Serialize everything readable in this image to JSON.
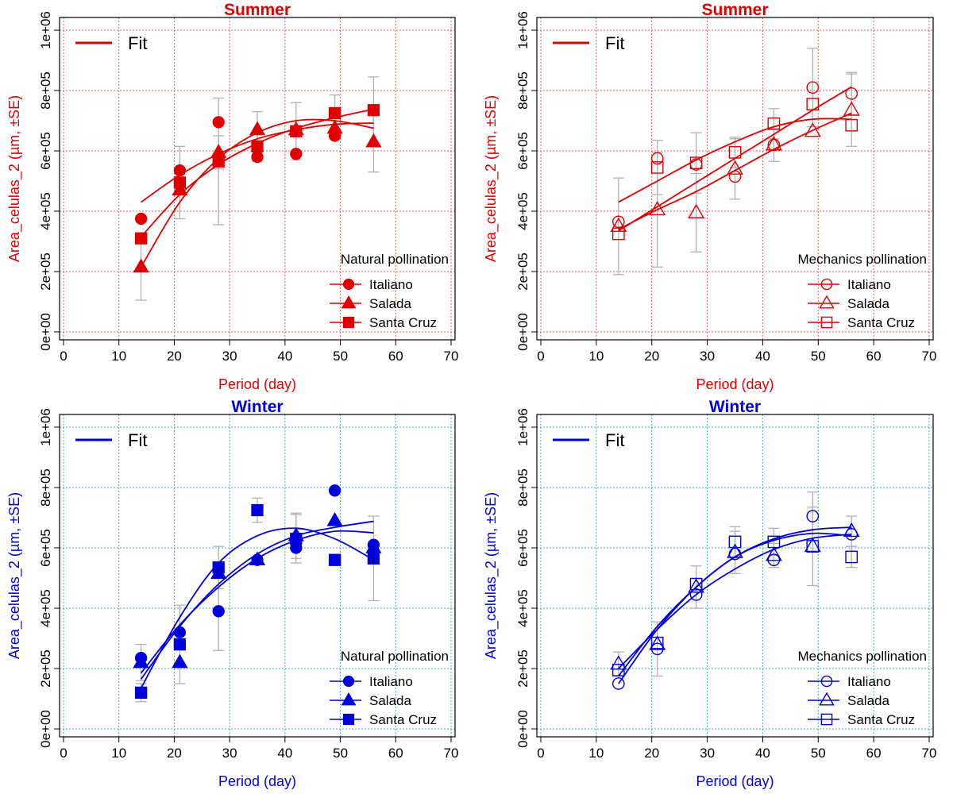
{
  "colors": {
    "summer": "#e00000",
    "winter": "#0000dd",
    "summer_grid": "#e06060",
    "winter_grid": "#40b0b0",
    "error_bar": "#b0b0b0"
  },
  "chart_data": [
    {
      "type": "scatter",
      "title": "Summer",
      "xlabel": "Period (day)",
      "ylabel": "Area_celulas_2 (µm, ±SE)",
      "xlim": [
        0,
        70
      ],
      "ylim": [
        0,
        1000000
      ],
      "xticks": [
        "0",
        "10",
        "20",
        "30",
        "40",
        "50",
        "60",
        "70"
      ],
      "yticks": [
        "0e+00",
        "2e+05",
        "4e+05",
        "6e+05",
        "8e+05",
        "1e+06"
      ],
      "grid": true,
      "fit_label": "Fit",
      "legend_title": "Natural pollination",
      "legend_position": "bottom-right",
      "color": "summer",
      "filled": true,
      "series": [
        {
          "name": "Italiano",
          "marker": "circle",
          "x": [
            14,
            21,
            28,
            35,
            42,
            49,
            56
          ],
          "y": [
            375000,
            535000,
            695000,
            580000,
            590000,
            650000,
            735000
          ],
          "se": [
            0,
            0,
            0,
            0,
            0,
            0,
            0
          ],
          "fit": {
            "x": [
              14,
              21,
              28,
              35,
              42,
              49,
              56
            ],
            "y": [
              430000,
              520000,
              590000,
              640000,
              670000,
              688000,
              692000
            ]
          }
        },
        {
          "name": "Salada",
          "marker": "triangle",
          "x": [
            14,
            21,
            28,
            35,
            42,
            49,
            56
          ],
          "y": [
            215000,
            470000,
            595000,
            670000,
            670000,
            675000,
            630000
          ],
          "se": [
            110000,
            0,
            55000,
            60000,
            0,
            0,
            100000
          ],
          "fit": {
            "x": [
              14,
              21,
              28,
              35,
              42,
              49,
              56
            ],
            "y": [
              215000,
              430000,
              575000,
              660000,
              700000,
              700000,
              675000
            ]
          }
        },
        {
          "name": "Santa Cruz",
          "marker": "square",
          "x": [
            14,
            21,
            28,
            35,
            42,
            49,
            56
          ],
          "y": [
            310000,
            495000,
            565000,
            615000,
            665000,
            725000,
            735000
          ],
          "se": [
            0,
            120000,
            210000,
            50000,
            95000,
            60000,
            110000
          ],
          "fit": {
            "x": [
              14,
              21,
              28,
              35,
              42,
              49,
              56
            ],
            "y": [
              315000,
              455000,
              555000,
              625000,
              675000,
              710000,
              738000
            ]
          }
        }
      ]
    },
    {
      "type": "scatter",
      "title": "Summer",
      "xlabel": "Period (day)",
      "ylabel": "Area_celulas_2 (µm, ±SE)",
      "xlim": [
        0,
        70
      ],
      "ylim": [
        0,
        1000000
      ],
      "xticks": [
        "0",
        "10",
        "20",
        "30",
        "40",
        "50",
        "60",
        "70"
      ],
      "yticks": [
        "0e+00",
        "2e+05",
        "4e+05",
        "6e+05",
        "8e+05",
        "1e+06"
      ],
      "grid": true,
      "fit_label": "Fit",
      "legend_title": "Mechanics pollination",
      "legend_position": "bottom-right",
      "color": "summer",
      "filled": false,
      "series": [
        {
          "name": "Italiano",
          "marker": "circle",
          "x": [
            14,
            21,
            28,
            35,
            42,
            49,
            56
          ],
          "y": [
            365000,
            575000,
            555000,
            515000,
            620000,
            810000,
            790000
          ],
          "se": [
            0,
            0,
            0,
            0,
            0,
            130000,
            70000
          ],
          "fit": {
            "x": [
              14,
              21,
              28,
              35,
              42,
              49,
              56
            ],
            "y": [
              335000,
              415000,
              495000,
              575000,
              655000,
              735000,
              812000
            ]
          }
        },
        {
          "name": "Salada",
          "marker": "triangle",
          "x": [
            14,
            21,
            28,
            35,
            42,
            49,
            56
          ],
          "y": [
            350000,
            405000,
            395000,
            540000,
            620000,
            665000,
            735000
          ],
          "se": [
            160000,
            190000,
            130000,
            100000,
            55000,
            0,
            120000
          ],
          "fit": {
            "x": [
              14,
              21,
              28,
              35,
              42,
              49,
              56
            ],
            "y": [
              340000,
              405000,
              465000,
              535000,
              605000,
              668000,
              725000
            ]
          }
        },
        {
          "name": "Santa Cruz",
          "marker": "square",
          "x": [
            14,
            21,
            28,
            35,
            42,
            49,
            56
          ],
          "y": [
            325000,
            545000,
            560000,
            595000,
            690000,
            755000,
            685000
          ],
          "se": [
            0,
            90000,
            100000,
            50000,
            50000,
            0,
            0
          ],
          "fit": {
            "x": [
              14,
              21,
              28,
              35,
              42,
              49,
              56
            ],
            "y": [
              430000,
              500000,
              570000,
              630000,
              680000,
              705000,
              705000
            ]
          }
        }
      ]
    },
    {
      "type": "scatter",
      "title": "Winter",
      "xlabel": "Period (day)",
      "ylabel": "Area_celulas_2 (µm, ±SE)",
      "xlim": [
        0,
        70
      ],
      "ylim": [
        0,
        1000000
      ],
      "xticks": [
        "0",
        "10",
        "20",
        "30",
        "40",
        "50",
        "60",
        "70"
      ],
      "yticks": [
        "0e+00",
        "2e+05",
        "4e+05",
        "6e+05",
        "8e+05",
        "1e+06"
      ],
      "grid": true,
      "fit_label": "Fit",
      "legend_title": "Natural pollination",
      "legend_position": "bottom-right",
      "color": "winter",
      "filled": true,
      "series": [
        {
          "name": "Italiano",
          "marker": "circle",
          "x": [
            14,
            21,
            28,
            35,
            42,
            49,
            56
          ],
          "y": [
            235000,
            320000,
            390000,
            560000,
            600000,
            790000,
            610000
          ],
          "se": [
            0,
            0,
            130000,
            0,
            0,
            0,
            0
          ],
          "fit": {
            "x": [
              14,
              21,
              28,
              35,
              42,
              49,
              56
            ],
            "y": [
              135000,
              370000,
              550000,
              640000,
              665000,
              630000,
              560000
            ]
          }
        },
        {
          "name": "Salada",
          "marker": "triangle",
          "x": [
            14,
            21,
            28,
            35,
            42,
            49,
            56
          ],
          "y": [
            220000,
            220000,
            515000,
            560000,
            640000,
            690000,
            600000
          ],
          "se": [
            60000,
            0,
            0,
            0,
            75000,
            0,
            0
          ],
          "fit": {
            "x": [
              14,
              21,
              28,
              35,
              42,
              49,
              56
            ],
            "y": [
              165000,
              340000,
              480000,
              580000,
              640000,
              668000,
              688000
            ]
          }
        },
        {
          "name": "Santa Cruz",
          "marker": "square",
          "x": [
            14,
            21,
            28,
            35,
            42,
            49,
            56
          ],
          "y": [
            120000,
            280000,
            535000,
            725000,
            630000,
            560000,
            565000
          ],
          "se": [
            30000,
            130000,
            70000,
            40000,
            80000,
            0,
            140000
          ],
          "fit": {
            "x": [
              14,
              21,
              28,
              35,
              42,
              49,
              56
            ],
            "y": [
              185000,
              345000,
              470000,
              565000,
              625000,
              655000,
              650000
            ]
          }
        }
      ]
    },
    {
      "type": "scatter",
      "title": "Winter",
      "xlabel": "Period (day)",
      "ylabel": "Area_celulas_2 (µm, ±SE)",
      "xlim": [
        0,
        70
      ],
      "ylim": [
        0,
        1000000
      ],
      "xticks": [
        "0",
        "10",
        "20",
        "30",
        "40",
        "50",
        "60",
        "70"
      ],
      "yticks": [
        "0e+00",
        "2e+05",
        "4e+05",
        "6e+05",
        "8e+05",
        "1e+06"
      ],
      "grid": true,
      "fit_label": "Fit",
      "legend_title": "Mechanics pollination",
      "legend_position": "bottom-right",
      "color": "winter",
      "filled": false,
      "series": [
        {
          "name": "Italiano",
          "marker": "circle",
          "x": [
            14,
            21,
            28,
            35,
            42,
            49,
            56
          ],
          "y": [
            150000,
            265000,
            445000,
            580000,
            560000,
            705000,
            645000
          ],
          "se": [
            0,
            90000,
            0,
            0,
            0,
            80000,
            0
          ],
          "fit": {
            "x": [
              14,
              21,
              28,
              35,
              42,
              49,
              56
            ],
            "y": [
              150000,
              330000,
              470000,
              570000,
              630000,
              660000,
              668000
            ]
          }
        },
        {
          "name": "Salada",
          "marker": "triangle",
          "x": [
            14,
            21,
            28,
            35,
            42,
            49,
            56
          ],
          "y": [
            215000,
            280000,
            470000,
            585000,
            575000,
            605000,
            655000
          ],
          "se": [
            40000,
            0,
            70000,
            70000,
            40000,
            130000,
            50000
          ],
          "fit": {
            "x": [
              14,
              21,
              28,
              35,
              42,
              49,
              56
            ],
            "y": [
              200000,
              330000,
              445000,
              530000,
              595000,
              632000,
              645000
            ]
          }
        },
        {
          "name": "Santa Cruz",
          "marker": "square",
          "x": [
            14,
            21,
            28,
            35,
            42,
            49,
            56
          ],
          "y": [
            195000,
            285000,
            480000,
            620000,
            620000,
            605000,
            570000
          ],
          "se": [
            0,
            0,
            0,
            50000,
            45000,
            0,
            35000
          ],
          "fit": {
            "x": [
              14,
              21,
              28,
              35,
              42,
              49,
              56
            ],
            "y": [
              175000,
              340000,
              470000,
              570000,
              625000,
              648000,
              640000
            ]
          }
        }
      ]
    }
  ]
}
